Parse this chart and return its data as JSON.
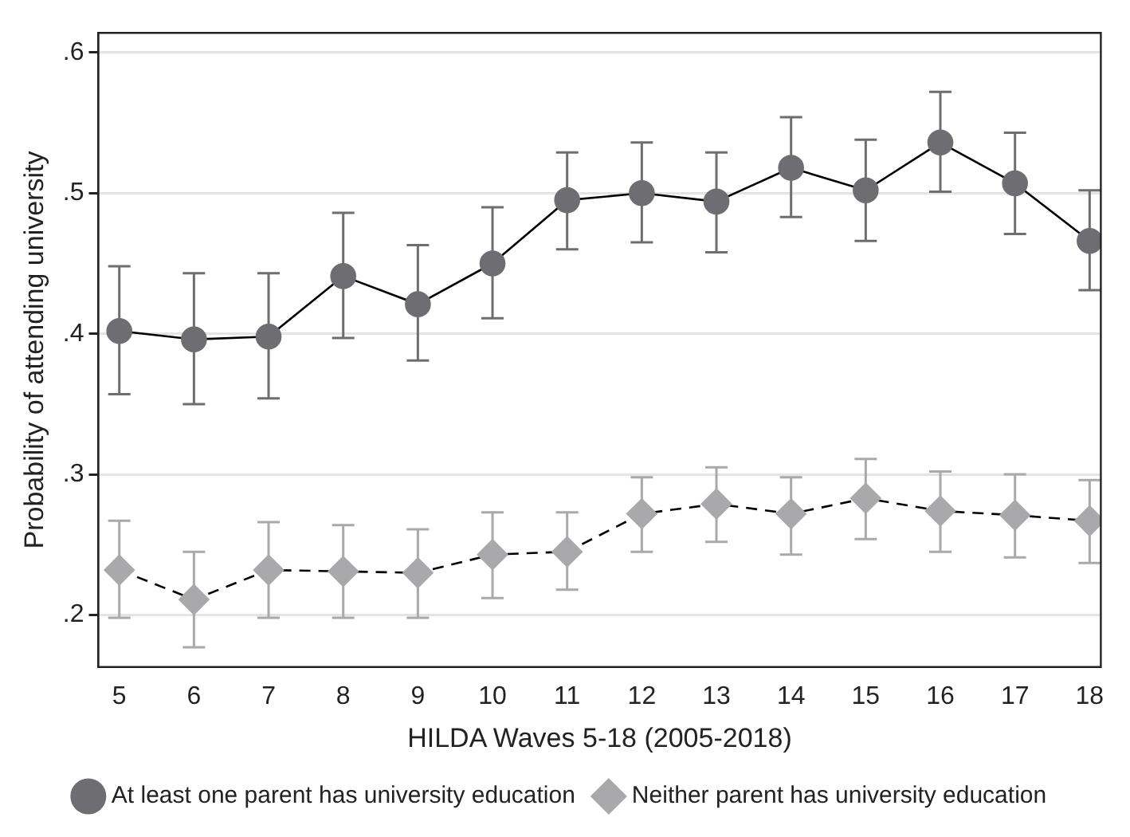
{
  "chart_data": {
    "type": "line",
    "xlabel": "HILDA Waves 5-18 (2005-2018)",
    "ylabel": "Probability of attending university",
    "x": [
      5,
      6,
      7,
      8,
      9,
      10,
      11,
      12,
      13,
      14,
      15,
      16,
      17,
      18
    ],
    "xlim": [
      4.72,
      18.15
    ],
    "xticks": [
      5,
      6,
      7,
      8,
      9,
      10,
      11,
      12,
      13,
      14,
      15,
      16,
      17,
      18
    ],
    "ylim": [
      0.163,
      0.614
    ],
    "yticks": [
      {
        "value": 0.2,
        "label": ".2"
      },
      {
        "value": 0.3,
        "label": ".3"
      },
      {
        "value": 0.4,
        "label": ".4"
      },
      {
        "value": 0.5,
        "label": ".5"
      },
      {
        "value": 0.6,
        "label": ".6"
      }
    ],
    "grid": "y",
    "legend": "bottom",
    "series": [
      {
        "name": "At least one parent has university education",
        "color": "#6e6e72",
        "marker": "circle",
        "line_style": "solid",
        "values": [
          0.402,
          0.396,
          0.398,
          0.441,
          0.421,
          0.45,
          0.495,
          0.5,
          0.494,
          0.518,
          0.502,
          0.536,
          0.507,
          0.466
        ],
        "errors": [
          [
            0.357,
            0.448
          ],
          [
            0.35,
            0.443
          ],
          [
            0.354,
            0.443
          ],
          [
            0.397,
            0.486
          ],
          [
            0.381,
            0.463
          ],
          [
            0.411,
            0.49
          ],
          [
            0.46,
            0.529
          ],
          [
            0.465,
            0.536
          ],
          [
            0.458,
            0.529
          ],
          [
            0.483,
            0.554
          ],
          [
            0.466,
            0.538
          ],
          [
            0.501,
            0.572
          ],
          [
            0.471,
            0.543
          ],
          [
            0.431,
            0.502
          ]
        ]
      },
      {
        "name": "Neither parent has university education",
        "color": "#a9a9ab",
        "marker": "diamond",
        "line_style": "dashed",
        "values": [
          0.232,
          0.211,
          0.232,
          0.231,
          0.23,
          0.243,
          0.245,
          0.272,
          0.279,
          0.272,
          0.283,
          0.274,
          0.271,
          0.267
        ],
        "errors": [
          [
            0.198,
            0.267
          ],
          [
            0.177,
            0.245
          ],
          [
            0.198,
            0.266
          ],
          [
            0.198,
            0.264
          ],
          [
            0.198,
            0.261
          ],
          [
            0.212,
            0.273
          ],
          [
            0.218,
            0.273
          ],
          [
            0.245,
            0.298
          ],
          [
            0.252,
            0.305
          ],
          [
            0.243,
            0.298
          ],
          [
            0.254,
            0.311
          ],
          [
            0.245,
            0.302
          ],
          [
            0.241,
            0.3
          ],
          [
            0.237,
            0.296
          ]
        ]
      }
    ]
  }
}
